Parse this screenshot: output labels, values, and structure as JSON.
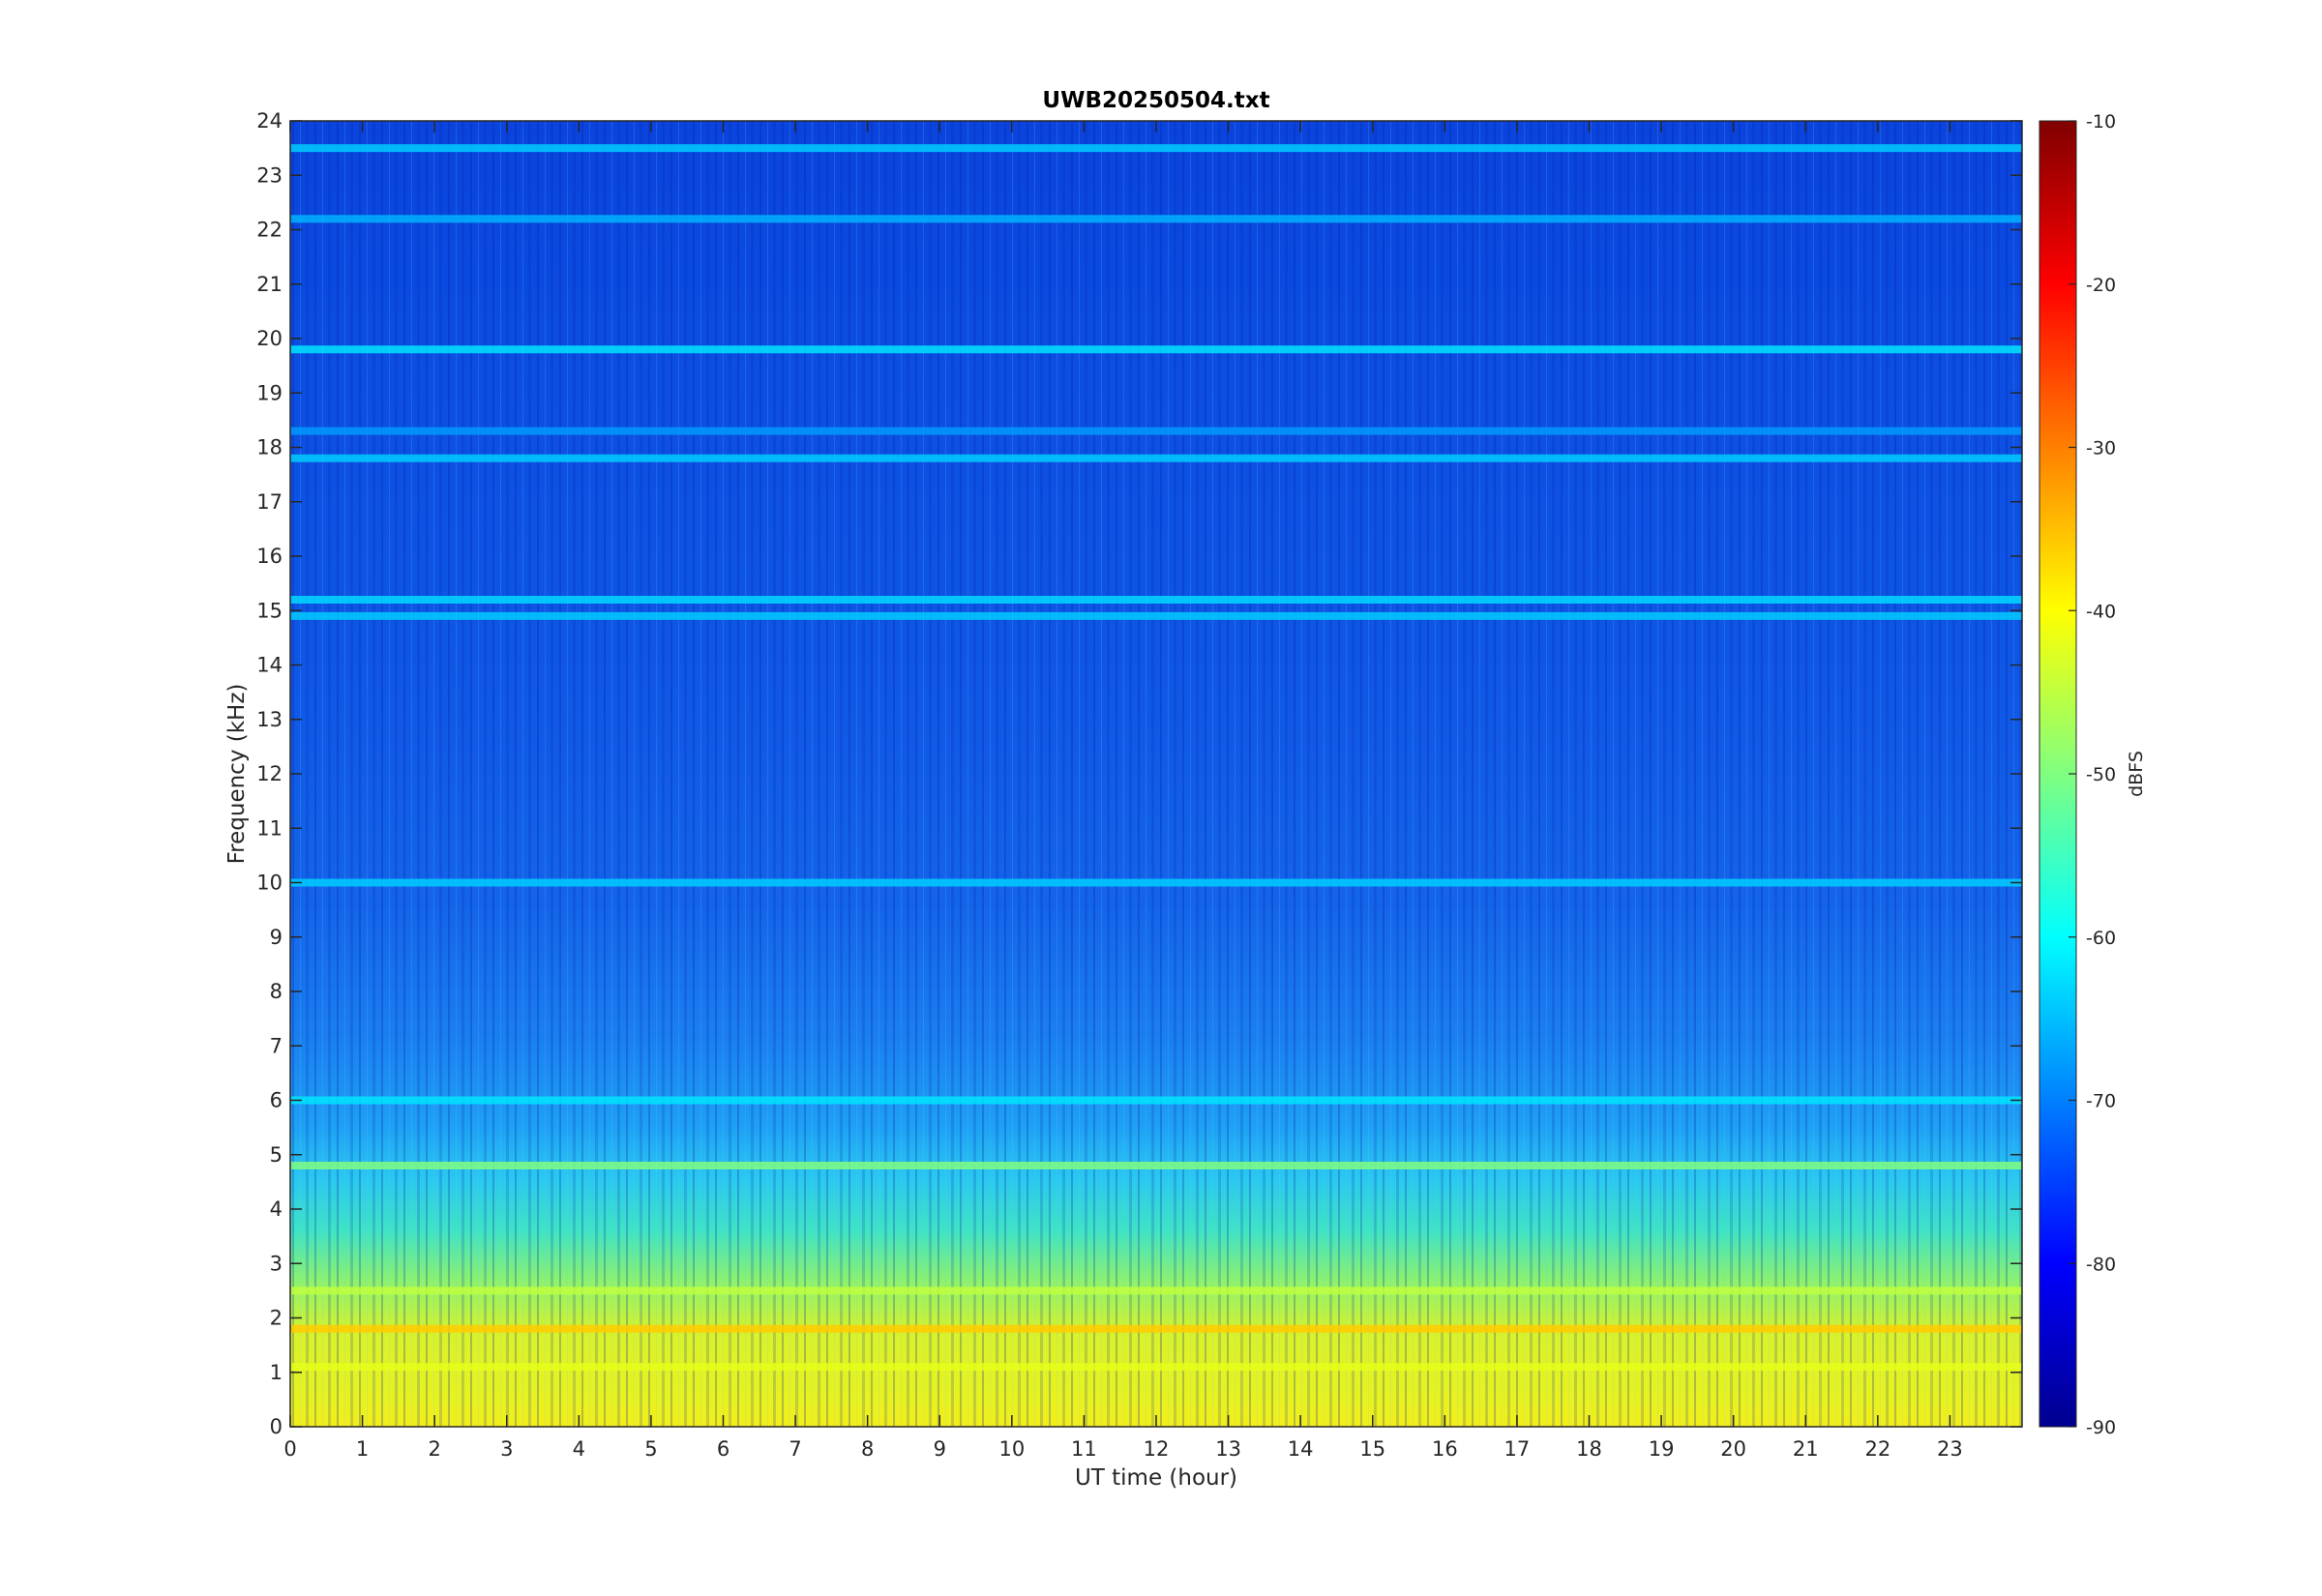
{
  "chart_data": {
    "type": "heatmap",
    "title": "UWB20250504.txt",
    "xlabel": "UT time (hour)",
    "ylabel": "Frequency (kHz)",
    "xlim": [
      0,
      24
    ],
    "ylim": [
      0,
      24
    ],
    "x_ticks": [
      "0",
      "1",
      "2",
      "3",
      "4",
      "5",
      "6",
      "7",
      "8",
      "9",
      "10",
      "11",
      "12",
      "13",
      "14",
      "15",
      "16",
      "17",
      "18",
      "19",
      "20",
      "21",
      "22",
      "23"
    ],
    "y_ticks": [
      "0",
      "1",
      "2",
      "3",
      "4",
      "5",
      "6",
      "7",
      "8",
      "9",
      "10",
      "11",
      "12",
      "13",
      "14",
      "15",
      "16",
      "17",
      "18",
      "19",
      "20",
      "21",
      "22",
      "23",
      "24"
    ],
    "colorbar": {
      "label": "dBFS",
      "colormap": "jet",
      "range": [
        -90,
        -10
      ],
      "ticks": [
        "-90",
        "-80",
        "-70",
        "-60",
        "-50",
        "-40",
        "-30",
        "-20",
        "-10"
      ]
    },
    "background_dbfs": -75,
    "bands": [
      {
        "freq_khz": 19.8,
        "level_dbfs": -62
      },
      {
        "freq_khz": 23.5,
        "level_dbfs": -64
      },
      {
        "freq_khz": 22.2,
        "level_dbfs": -66
      },
      {
        "freq_khz": 17.8,
        "level_dbfs": -64
      },
      {
        "freq_khz": 18.3,
        "level_dbfs": -68
      },
      {
        "freq_khz": 15.2,
        "level_dbfs": -63
      },
      {
        "freq_khz": 14.9,
        "level_dbfs": -64
      },
      {
        "freq_khz": 10.0,
        "level_dbfs": -64
      },
      {
        "freq_khz": 6.0,
        "level_dbfs": -62
      },
      {
        "freq_khz": 4.8,
        "level_dbfs": -50
      },
      {
        "freq_khz": 2.5,
        "level_dbfs": -45
      },
      {
        "freq_khz": 1.8,
        "level_dbfs": -36
      },
      {
        "freq_khz": 1.1,
        "level_dbfs": -42
      }
    ]
  }
}
